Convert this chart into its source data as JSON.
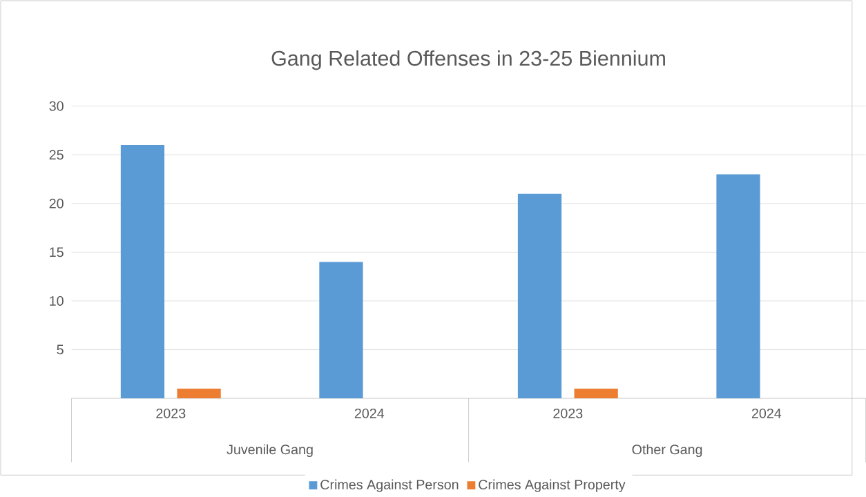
{
  "chart_data": {
    "type": "bar",
    "title": "Gang Related Offenses in 23-25 Biennium",
    "categories": [
      "2023",
      "2024",
      "2023",
      "2024"
    ],
    "series": [
      {
        "name": "Crimes Against Person",
        "color": "#5b9bd5",
        "values": [
          26,
          14,
          21,
          23
        ]
      },
      {
        "name": "Crimes Against Property",
        "color": "#ed7d31",
        "values": [
          1,
          0,
          1,
          0
        ]
      }
    ],
    "annotations": [
      "Juvenile Gang",
      "Other Gang"
    ],
    "ylim": [
      0,
      30
    ],
    "yticks": [
      5,
      10,
      15,
      20,
      25,
      30
    ],
    "grid": "y",
    "legend": "bottom"
  }
}
